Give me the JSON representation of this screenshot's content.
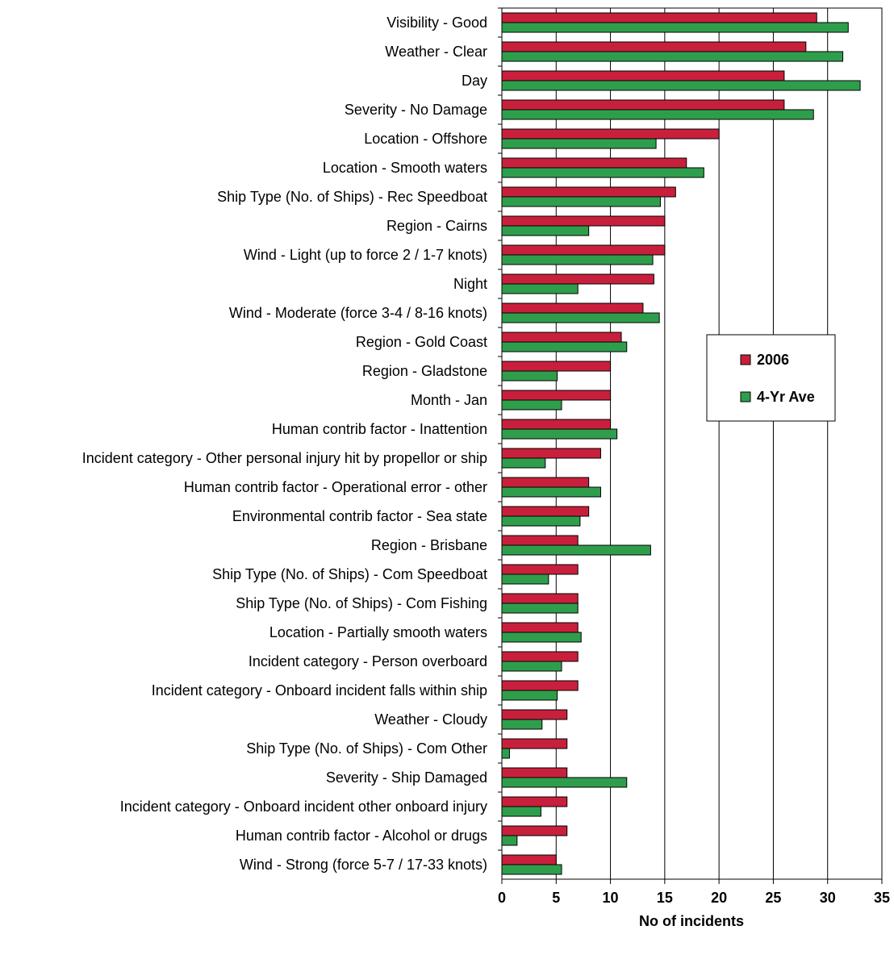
{
  "chart_data": {
    "type": "bar",
    "orientation": "horizontal",
    "x_label": "No of incidents",
    "categories": [
      "Visibility - Good",
      "Weather - Clear",
      "Day",
      "Severity - No Damage",
      "Location - Offshore",
      "Location - Smooth waters",
      "Ship Type (No. of Ships) - Rec Speedboat",
      "Region - Cairns",
      "Wind - Light (up to force 2 / 1-7 knots)",
      "Night",
      "Wind - Moderate (force 3-4 / 8-16 knots)",
      "Region - Gold Coast",
      "Region - Gladstone",
      "Month - Jan",
      "Human contrib factor - Inattention",
      "Incident category - Other personal injury hit by propellor or ship",
      "Human contrib factor - Operational error - other",
      "Environmental contrib factor - Sea state",
      "Region - Brisbane",
      "Ship Type (No. of Ships) - Com Speedboat",
      "Ship Type (No. of Ships) - Com Fishing",
      "Location - Partially smooth waters",
      "Incident category - Person overboard",
      "Incident category - Onboard incident falls within ship",
      "Weather - Cloudy",
      "Ship Type (No. of Ships) - Com Other",
      "Severity - Ship Damaged",
      "Incident category - Onboard incident other onboard injury",
      "Human contrib factor - Alcohol or drugs",
      "Wind - Strong (force 5-7 / 17-33 knots)"
    ],
    "series": [
      {
        "name": "2006",
        "color": "#c8203c",
        "values": [
          29,
          28,
          26,
          26,
          20,
          17,
          16,
          15,
          15,
          14,
          13,
          11,
          10,
          10,
          10,
          9.1,
          8,
          8,
          7,
          7,
          7,
          7,
          7,
          7,
          6,
          6,
          6,
          6,
          6,
          5
        ]
      },
      {
        "name": "4-Yr Ave",
        "color": "#2f9e4c",
        "values": [
          31.9,
          31.4,
          33,
          28.7,
          14.2,
          18.6,
          14.6,
          8,
          13.9,
          7,
          14.5,
          11.5,
          5.1,
          5.5,
          10.6,
          4,
          9.1,
          7.2,
          13.7,
          4.3,
          7,
          7.3,
          5.5,
          5.1,
          3.7,
          0.7,
          11.5,
          3.6,
          1.4,
          5.5
        ]
      }
    ],
    "xlim": [
      0,
      35
    ],
    "xticks": [
      0,
      5,
      10,
      15,
      20,
      25,
      30,
      35
    ],
    "grid": true
  }
}
